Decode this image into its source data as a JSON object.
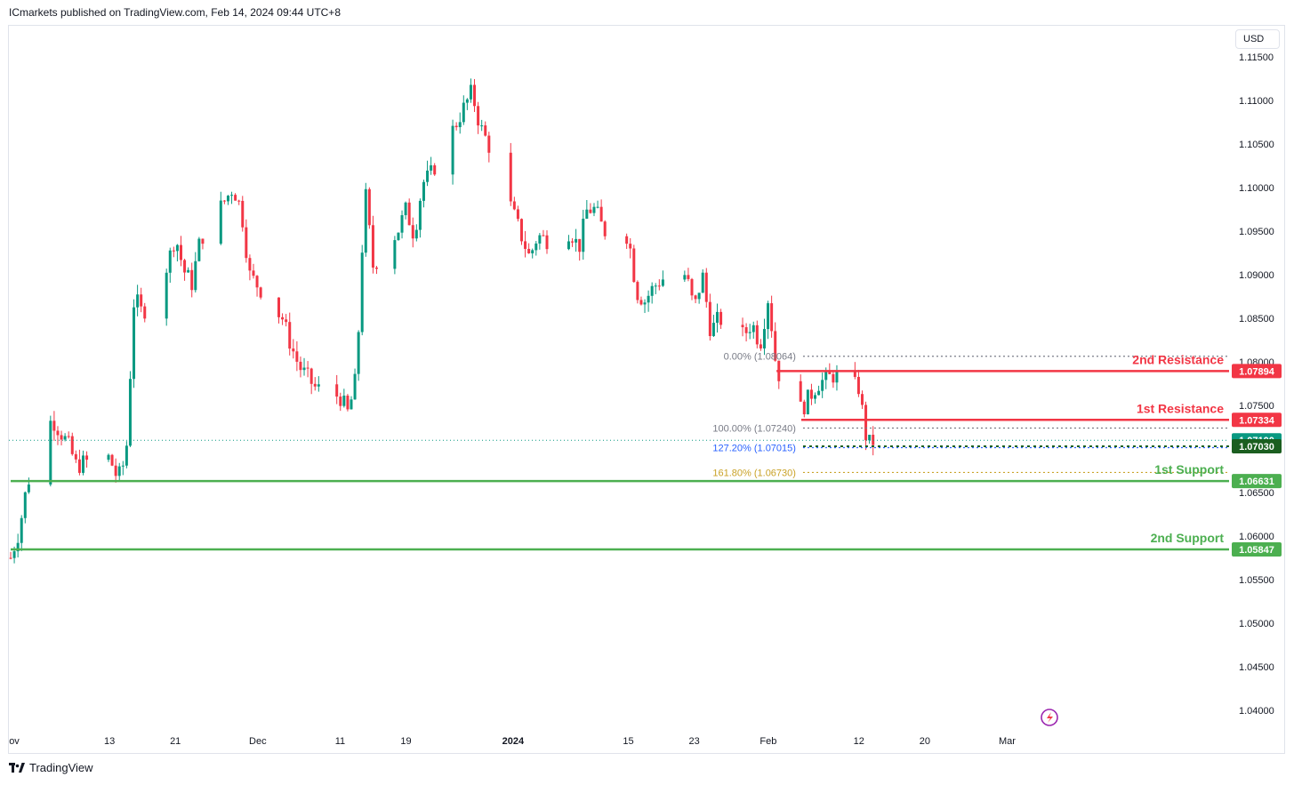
{
  "header": {
    "published": "ICmarkets published on TradingView.com, Feb 14, 2024 09:44 UTC+8"
  },
  "currency": "USD",
  "footer": {
    "brand": "TradingView"
  },
  "colors": {
    "up": "#089981",
    "down": "#f23645",
    "support": "#4caf50",
    "resistance": "#f23645",
    "fib": "#787b86",
    "fib127": "#2962ff",
    "fib161": "#c9a227",
    "last": "#089981",
    "target": "#1b5e20"
  },
  "chart_data": {
    "type": "candlestick",
    "title": "",
    "ylim": [
      1.035,
      1.1185
    ],
    "y_ticks": [
      1.115,
      1.11,
      1.105,
      1.1,
      1.095,
      1.09,
      1.085,
      1.08,
      1.075,
      1.065,
      1.06,
      1.055,
      1.05,
      1.045,
      1.04
    ],
    "y_tick_labels": [
      "1.11500",
      "1.11000",
      "1.10500",
      "1.10000",
      "1.09500",
      "1.09000",
      "1.08500",
      "1.08000",
      "1.07500",
      "1.06500",
      "1.06000",
      "1.05500",
      "1.05000",
      "1.04500",
      "1.04000"
    ],
    "x_ticks": [
      {
        "label": "ov",
        "date": "2023-11-01"
      },
      {
        "label": "13",
        "date": "2023-11-13"
      },
      {
        "label": "21",
        "date": "2023-11-21"
      },
      {
        "label": "Dec",
        "date": "2023-12-01"
      },
      {
        "label": "11",
        "date": "2023-12-11"
      },
      {
        "label": "19",
        "date": "2023-12-19"
      },
      {
        "label": "2024",
        "date": "2024-01-01"
      },
      {
        "label": "15",
        "date": "2024-01-15"
      },
      {
        "label": "23",
        "date": "2024-01-23"
      },
      {
        "label": "Feb",
        "date": "2024-02-01"
      },
      {
        "label": "12",
        "date": "2024-02-12"
      },
      {
        "label": "20",
        "date": "2024-02-20"
      },
      {
        "label": "Mar",
        "date": "2024-03-01"
      }
    ],
    "price_path": [
      [
        "2023-11-01",
        1.0575
      ],
      [
        "2023-11-02",
        1.0605
      ],
      [
        "2023-11-03",
        1.066
      ],
      [
        "2023-11-06",
        1.0735
      ],
      [
        "2023-11-08",
        1.0705
      ],
      [
        "2023-11-09",
        1.068
      ],
      [
        "2023-11-10",
        1.0685
      ],
      [
        "2023-11-13",
        1.069
      ],
      [
        "2023-11-14",
        1.0665
      ],
      [
        "2023-11-15",
        1.069
      ],
      [
        "2023-11-16",
        1.0875
      ],
      [
        "2023-11-17",
        1.0855
      ],
      [
        "2023-11-20",
        1.091
      ],
      [
        "2023-11-21",
        1.0945
      ],
      [
        "2023-11-22",
        1.0905
      ],
      [
        "2023-11-23",
        1.089
      ],
      [
        "2023-11-24",
        1.094
      ],
      [
        "2023-11-28",
        1.1
      ],
      [
        "2023-11-29",
        1.0975
      ],
      [
        "2023-11-30",
        1.09
      ],
      [
        "2023-12-04",
        1.085
      ],
      [
        "2023-12-05",
        1.082
      ],
      [
        "2023-12-06",
        1.0795
      ],
      [
        "2023-12-08",
        1.077
      ],
      [
        "2023-12-11",
        1.076
      ],
      [
        "2023-12-12",
        1.074
      ],
      [
        "2023-12-13",
        1.0785
      ],
      [
        "2023-12-14",
        1.1
      ],
      [
        "2023-12-15",
        1.091
      ],
      [
        "2023-12-18",
        1.095
      ],
      [
        "2023-12-19",
        1.0975
      ],
      [
        "2023-12-20",
        1.0945
      ],
      [
        "2023-12-21",
        1.1005
      ],
      [
        "2023-12-22",
        1.1015
      ],
      [
        "2023-12-27",
        1.111
      ],
      [
        "2023-12-28",
        1.107
      ],
      [
        "2023-12-29",
        1.105
      ],
      [
        "2024-01-02",
        1.0945
      ],
      [
        "2024-01-03",
        1.092
      ],
      [
        "2024-01-04",
        1.0945
      ],
      [
        "2024-01-05",
        1.094
      ],
      [
        "2024-01-08",
        1.095
      ],
      [
        "2024-01-09",
        1.093
      ],
      [
        "2024-01-10",
        1.0975
      ],
      [
        "2024-01-11",
        1.0975
      ],
      [
        "2024-01-12",
        1.095
      ],
      [
        "2024-01-15",
        1.0945
      ],
      [
        "2024-01-16",
        1.088
      ],
      [
        "2024-01-17",
        1.087
      ],
      [
        "2024-01-18",
        1.0885
      ],
      [
        "2024-01-19",
        1.0895
      ],
      [
        "2024-01-22",
        1.09
      ],
      [
        "2024-01-23",
        1.086
      ],
      [
        "2024-01-24",
        1.09
      ],
      [
        "2024-01-25",
        1.0835
      ],
      [
        "2024-01-26",
        1.085
      ],
      [
        "2024-01-29",
        1.083
      ],
      [
        "2024-01-30",
        1.0845
      ],
      [
        "2024-01-31",
        1.082
      ],
      [
        "2024-02-01",
        1.0875
      ],
      [
        "2024-02-02",
        1.079
      ],
      [
        "2024-02-05",
        1.0745
      ],
      [
        "2024-02-06",
        1.076
      ],
      [
        "2024-02-07",
        1.0775
      ],
      [
        "2024-02-08",
        1.078
      ],
      [
        "2024-02-09",
        1.0785
      ],
      [
        "2024-02-12",
        1.077
      ],
      [
        "2024-02-13",
        1.0705
      ],
      [
        "2024-02-14",
        1.071
      ]
    ],
    "levels": [
      {
        "name": "2nd Resistance",
        "value": 1.07894,
        "label": "1.07894",
        "color": "#f23645",
        "from": "2024-02-02"
      },
      {
        "name": "1st Resistance",
        "value": 1.07334,
        "label": "1.07334",
        "color": "#f23645",
        "from": "2024-02-05"
      },
      {
        "name": "1st Support",
        "value": 1.06631,
        "label": "1.06631",
        "color": "#4caf50",
        "from": "2023-11-01"
      },
      {
        "name": "2nd Support",
        "value": 1.05847,
        "label": "1.05847",
        "color": "#4caf50",
        "from": "2023-11-01"
      }
    ],
    "fib_levels": [
      {
        "label": "0.00% (1.08064)",
        "value": 1.08064,
        "color": "#787b86"
      },
      {
        "label": "100.00% (1.07240)",
        "value": 1.0724,
        "color": "#787b86"
      },
      {
        "label": "127.20% (1.07015)",
        "value": 1.07015,
        "color": "#2962ff"
      },
      {
        "label": "161.80% (1.06730)",
        "value": 1.0673,
        "color": "#c9a227"
      }
    ],
    "last_price": {
      "value": 1.071,
      "label": "1.07100",
      "color": "#089981"
    },
    "target_price": {
      "value": 1.0703,
      "label": "1.07030",
      "color": "#1b5e20"
    }
  }
}
